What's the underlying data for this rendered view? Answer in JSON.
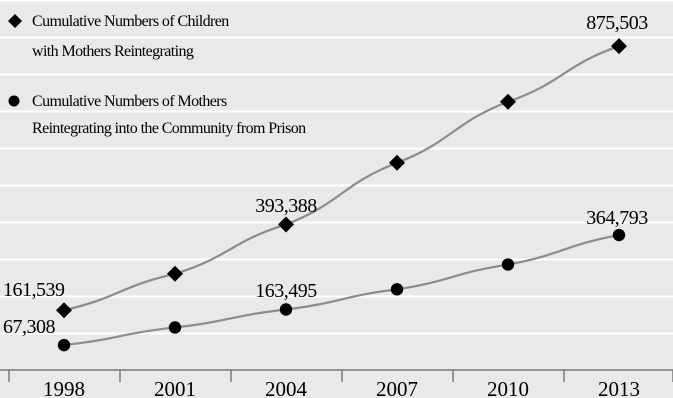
{
  "chart_data": {
    "type": "line",
    "categories": [
      "1998",
      "2001",
      "2004",
      "2007",
      "2010",
      "2013"
    ],
    "ylim": [
      0,
      1000000
    ],
    "grid": true,
    "legend_position": "top-left",
    "series": [
      {
        "name_lines": [
          "Cumulative Numbers of Children",
          "with Mothers Reintegrating"
        ],
        "marker": "diamond",
        "values": [
          161539,
          260000,
          393388,
          560000,
          725000,
          875503
        ],
        "labels": [
          "161,539",
          "",
          "393,388",
          "",
          "",
          "875,503"
        ]
      },
      {
        "name_lines": [
          "Cumulative Numbers of Mothers",
          "Reintegrating into the Community from Prison"
        ],
        "marker": "circle",
        "values": [
          67308,
          115000,
          163495,
          218000,
          285000,
          364793
        ],
        "labels": [
          "67,308",
          "",
          "163,495",
          "",
          "",
          "364,793"
        ]
      }
    ],
    "colors": {
      "background": "#e9e9e9",
      "grid": "#ffffff",
      "line": "#8c8c8c",
      "marker": "#000000"
    }
  }
}
